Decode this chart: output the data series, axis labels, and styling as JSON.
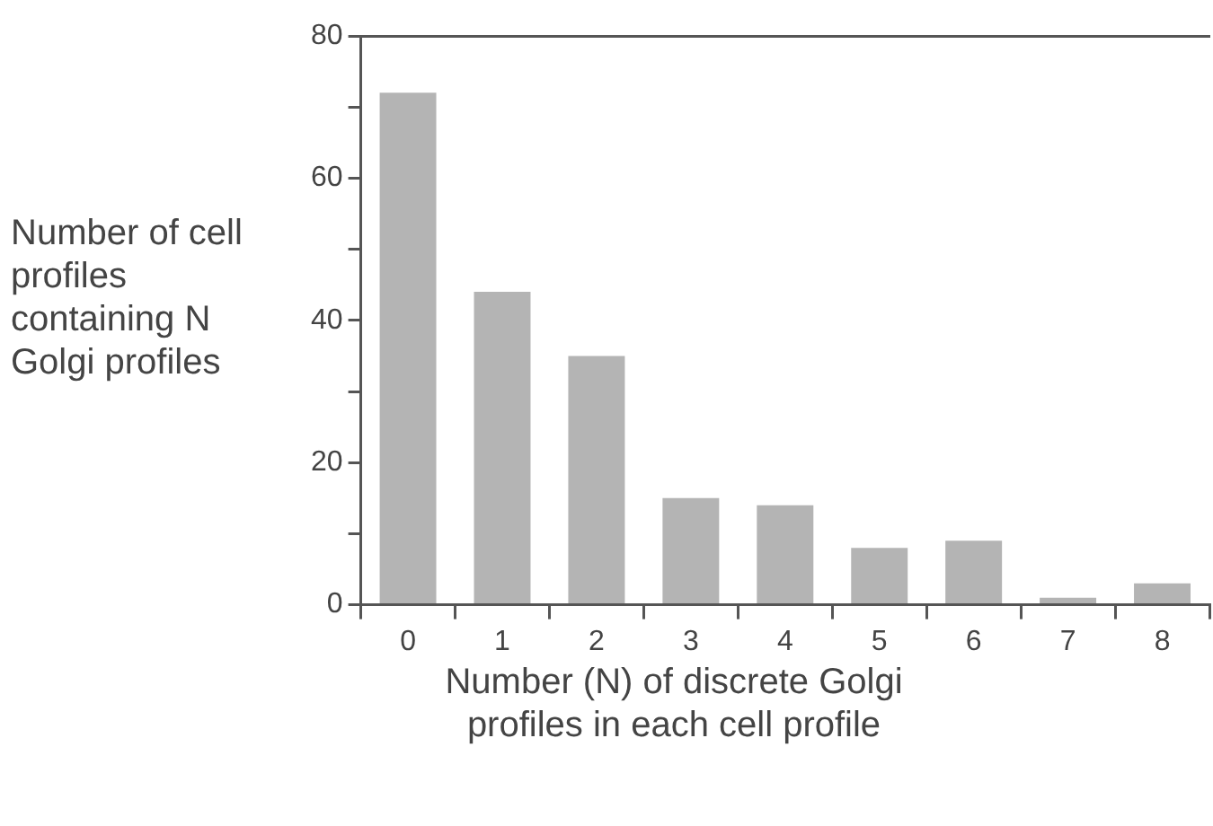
{
  "chart_data": {
    "type": "bar",
    "xlabel": "Number (N) of discrete Golgi profiles in each cell profile",
    "ylabel": "Number of cell profiles containing N Golgi profiles",
    "categories": [
      "0",
      "1",
      "2",
      "3",
      "4",
      "5",
      "6",
      "7",
      "8"
    ],
    "values": [
      72,
      44,
      35,
      15,
      14,
      8,
      9,
      1,
      3
    ],
    "color": "#b4b4b4",
    "ylim": [
      0,
      80
    ],
    "yticks": [
      0,
      {
        "value": 10,
        "label": null
      },
      20,
      {
        "value": 30,
        "label": null
      },
      40,
      {
        "value": 50,
        "label": null
      },
      60,
      {
        "value": 70,
        "label": null
      },
      80
    ],
    "grid": false
  }
}
